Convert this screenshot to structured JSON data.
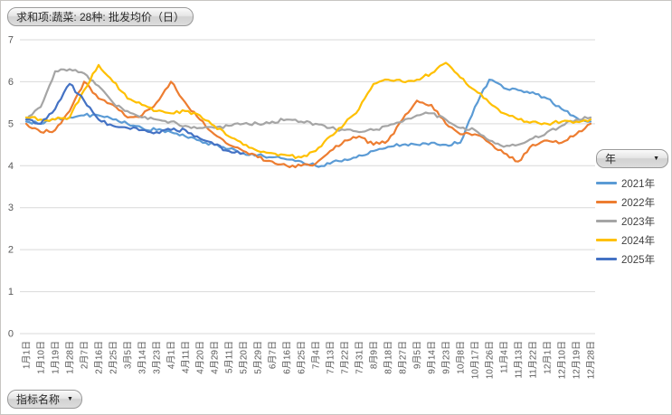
{
  "field_buttons": {
    "value_field": "求和项:蔬菜: 28种: 批发均价（日）",
    "legend_field": "年",
    "axis_field": "指标名称"
  },
  "chart_data": {
    "type": "line",
    "title": "求和项:蔬菜: 28种: 批发均价（日）",
    "xlabel": "",
    "ylabel": "",
    "ylim": [
      0,
      7
    ],
    "y_ticks": [
      0,
      1,
      2,
      3,
      4,
      5,
      6,
      7
    ],
    "grid": true,
    "legend_position": "right",
    "legend_title": "年",
    "categories": [
      "1月1日",
      "1月10日",
      "1月19日",
      "1月28日",
      "2月7日",
      "2月16日",
      "2月25日",
      "3月5日",
      "3月14日",
      "3月23日",
      "4月1日",
      "4月11日",
      "4月20日",
      "4月29日",
      "5月11日",
      "5月20日",
      "5月29日",
      "6月7日",
      "6月16日",
      "6月25日",
      "7月4日",
      "7月13日",
      "7月22日",
      "7月31日",
      "8月9日",
      "8月18日",
      "8月27日",
      "9月5日",
      "9月14日",
      "9月23日",
      "10月8日",
      "10月17日",
      "10月26日",
      "11月4日",
      "11月13日",
      "11月22日",
      "12月1日",
      "12月10日",
      "12月19日",
      "12月28日"
    ],
    "series": [
      {
        "name": "2021年",
        "color": "#5B9BD5",
        "values": [
          5.05,
          5.0,
          5.1,
          5.15,
          5.2,
          5.2,
          5.1,
          5.0,
          4.9,
          4.85,
          4.8,
          4.7,
          4.6,
          4.5,
          4.4,
          4.3,
          4.25,
          4.2,
          4.15,
          4.1,
          4.0,
          4.05,
          4.15,
          4.25,
          4.35,
          4.45,
          4.5,
          4.5,
          4.55,
          4.5,
          4.55,
          5.4,
          6.05,
          5.85,
          5.8,
          5.75,
          5.6,
          5.35,
          5.15,
          5.05
        ]
      },
      {
        "name": "2022年",
        "color": "#ED7D31",
        "values": [
          5.0,
          4.8,
          4.85,
          5.3,
          6.0,
          5.6,
          5.45,
          5.15,
          5.2,
          5.5,
          6.0,
          5.5,
          5.1,
          4.75,
          4.5,
          4.35,
          4.2,
          4.1,
          4.0,
          4.0,
          4.05,
          4.35,
          4.6,
          4.7,
          4.5,
          4.6,
          5.1,
          5.55,
          5.45,
          5.0,
          4.75,
          4.75,
          4.55,
          4.3,
          4.1,
          4.5,
          4.6,
          4.55,
          4.75,
          5.0
        ]
      },
      {
        "name": "2023年",
        "color": "#A5A5A5",
        "values": [
          5.1,
          5.4,
          6.25,
          6.3,
          6.2,
          5.9,
          5.5,
          5.3,
          5.15,
          5.1,
          5.05,
          4.95,
          4.9,
          4.9,
          4.95,
          5.0,
          5.0,
          5.05,
          5.1,
          5.05,
          5.0,
          4.9,
          4.85,
          4.8,
          4.85,
          4.95,
          5.05,
          5.2,
          5.25,
          5.1,
          4.9,
          4.85,
          4.6,
          4.45,
          4.5,
          4.65,
          4.8,
          4.95,
          5.1,
          5.15
        ]
      },
      {
        "name": "2024年",
        "color": "#FFC000",
        "values": [
          5.15,
          5.1,
          5.1,
          5.15,
          5.8,
          6.4,
          6.0,
          5.6,
          5.45,
          5.3,
          5.25,
          5.3,
          5.2,
          4.95,
          4.7,
          4.5,
          4.35,
          4.3,
          4.25,
          4.2,
          4.35,
          4.7,
          5.0,
          5.35,
          5.95,
          6.05,
          6.0,
          6.05,
          6.2,
          6.45,
          6.1,
          5.8,
          5.5,
          5.25,
          5.1,
          5.05,
          5.0,
          5.05,
          5.05,
          5.1
        ]
      },
      {
        "name": "2025年",
        "color": "#4472C4",
        "values": [
          5.1,
          5.0,
          5.35,
          5.95,
          5.55,
          5.1,
          4.95,
          4.9,
          4.85,
          4.8,
          4.85,
          4.85,
          4.65,
          4.5,
          4.35,
          4.3
        ]
      }
    ]
  }
}
